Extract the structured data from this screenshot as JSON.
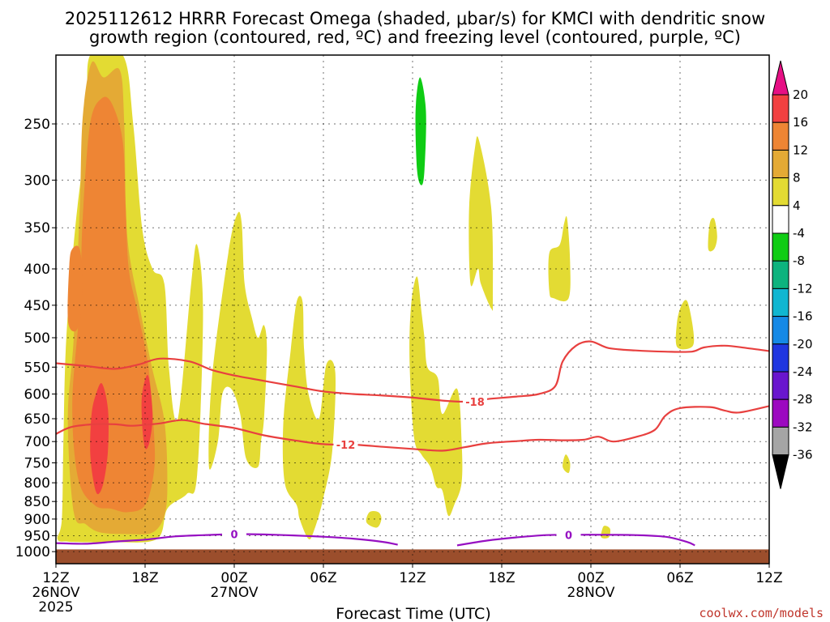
{
  "chart_data": {
    "type": "heatmap",
    "title_line1": "2025112612 HRRR Forecast Omega (shaded, μbar/s) for KMCI with dendritic snow",
    "title_line2": "growth region (contoured, red, ºC) and freezing level (contoured, purple, ºC)",
    "xlabel": "Forecast Time (UTC)",
    "credit": "coolwx.com/models",
    "x_ticks": [
      {
        "hour": 0,
        "label": "12Z",
        "sub1": "26NOV",
        "sub2": "2025"
      },
      {
        "hour": 6,
        "label": "18Z",
        "sub1": "",
        "sub2": ""
      },
      {
        "hour": 12,
        "label": "00Z",
        "sub1": "27NOV",
        "sub2": ""
      },
      {
        "hour": 18,
        "label": "06Z",
        "sub1": "",
        "sub2": ""
      },
      {
        "hour": 24,
        "label": "12Z",
        "sub1": "",
        "sub2": ""
      },
      {
        "hour": 30,
        "label": "18Z",
        "sub1": "",
        "sub2": ""
      },
      {
        "hour": 36,
        "label": "00Z",
        "sub1": "28NOV",
        "sub2": ""
      },
      {
        "hour": 42,
        "label": "06Z",
        "sub1": "",
        "sub2": ""
      },
      {
        "hour": 48,
        "label": "12Z",
        "sub1": "",
        "sub2": ""
      }
    ],
    "x_range": [
      0,
      48
    ],
    "y_ticks": [
      250,
      300,
      350,
      400,
      450,
      500,
      550,
      600,
      650,
      700,
      750,
      800,
      850,
      900,
      950,
      1000
    ],
    "y_range_hPa": [
      200,
      1040
    ],
    "surface_hPa": 993,
    "colorbar": {
      "levels": [
        "20",
        "16",
        "12",
        "8",
        "4",
        "-4",
        "-8",
        "-12",
        "-16",
        "-20",
        "-24",
        "-28",
        "-32",
        "-36"
      ],
      "colors": [
        "#e60f84",
        "#f24040",
        "#ee8534",
        "#e4aa35",
        "#e3db33",
        "#ffffff",
        "#0fcc14",
        "#0db37e",
        "#10b6d1",
        "#1589e6",
        "#1f36e0",
        "#6916ce",
        "#9c09c0",
        "#a5a5a5",
        "#000000"
      ]
    },
    "shaded_regions": [
      {
        "level": 4,
        "color": "#e3db33",
        "points": [
          [
            0.1,
            960
          ],
          [
            0.4,
            900
          ],
          [
            0.5,
            700
          ],
          [
            0.7,
            500
          ],
          [
            1.3,
            350
          ],
          [
            2.1,
            250
          ],
          [
            2.3,
            200
          ],
          [
            4.5,
            200
          ],
          [
            5.2,
            250
          ],
          [
            5.8,
            350
          ],
          [
            6.5,
            400
          ],
          [
            7.3,
            420
          ],
          [
            7.6,
            550
          ],
          [
            8.2,
            650
          ],
          [
            9.1,
            420
          ],
          [
            9.5,
            370
          ],
          [
            9.9,
            460
          ],
          [
            9.5,
            780
          ],
          [
            8.8,
            830
          ],
          [
            7.5,
            870
          ],
          [
            6.8,
            960
          ],
          [
            4.0,
            970
          ],
          [
            2.0,
            970
          ],
          [
            0.8,
            968
          ]
        ]
      },
      {
        "level": 4,
        "color": "#e3db33",
        "points": [
          [
            10.3,
            760
          ],
          [
            10.5,
            570
          ],
          [
            11.6,
            380
          ],
          [
            12.2,
            335
          ],
          [
            12.5,
            345
          ],
          [
            12.7,
            420
          ],
          [
            13.2,
            470
          ],
          [
            13.6,
            500
          ],
          [
            14.0,
            480
          ],
          [
            14.2,
            520
          ],
          [
            14.0,
            650
          ],
          [
            13.8,
            700
          ],
          [
            13.6,
            760
          ],
          [
            12.8,
            740
          ],
          [
            12.4,
            640
          ],
          [
            11.8,
            590
          ],
          [
            11.2,
            600
          ],
          [
            10.9,
            700
          ]
        ]
      },
      {
        "level": 4,
        "color": "#e3db33",
        "points": [
          [
            15.4,
            800
          ],
          [
            15.3,
            660
          ],
          [
            15.8,
            520
          ],
          [
            16.2,
            445
          ],
          [
            16.6,
            445
          ],
          [
            16.7,
            520
          ],
          [
            17.0,
            600
          ],
          [
            17.7,
            650
          ],
          [
            18.2,
            545
          ],
          [
            18.8,
            560
          ],
          [
            18.6,
            720
          ],
          [
            18.0,
            840
          ],
          [
            17.4,
            930
          ],
          [
            17.0,
            960
          ],
          [
            16.4,
            900
          ],
          [
            16.2,
            860
          ]
        ]
      },
      {
        "level": 4,
        "color": "#e3db33",
        "points": [
          [
            24.1,
            690
          ],
          [
            23.8,
            540
          ],
          [
            23.9,
            450
          ],
          [
            24.3,
            410
          ],
          [
            24.6,
            460
          ],
          [
            24.8,
            500
          ],
          [
            25.0,
            550
          ],
          [
            25.7,
            570
          ],
          [
            26.0,
            640
          ],
          [
            27.0,
            590
          ],
          [
            27.3,
            700
          ],
          [
            27.3,
            800
          ],
          [
            26.8,
            860
          ],
          [
            26.4,
            890
          ],
          [
            26.0,
            820
          ],
          [
            25.6,
            810
          ],
          [
            25.2,
            760
          ],
          [
            24.6,
            730
          ]
        ]
      },
      {
        "level": 4,
        "color": "#e3db33",
        "points": [
          [
            27.9,
            420
          ],
          [
            27.8,
            330
          ],
          [
            28.2,
            270
          ],
          [
            28.5,
            265
          ],
          [
            29.3,
            330
          ],
          [
            29.4,
            440
          ],
          [
            29.3,
            455
          ],
          [
            28.6,
            420
          ],
          [
            28.4,
            400
          ]
        ]
      },
      {
        "level": 4,
        "color": "#e3db33",
        "points": [
          [
            33.2,
            430
          ],
          [
            33.2,
            380
          ],
          [
            33.9,
            370
          ],
          [
            34.2,
            345
          ],
          [
            34.4,
            340
          ],
          [
            34.6,
            390
          ],
          [
            34.5,
            440
          ],
          [
            33.5,
            440
          ]
        ]
      },
      {
        "level": 4,
        "color": "#e3db33",
        "points": [
          [
            41.8,
            515
          ],
          [
            41.8,
            475
          ],
          [
            42.1,
            450
          ],
          [
            42.5,
            445
          ],
          [
            42.9,
            490
          ],
          [
            42.8,
            515
          ]
        ]
      },
      {
        "level": 4,
        "color": "#e3db33",
        "points": [
          [
            43.9,
            375
          ],
          [
            44.0,
            345
          ],
          [
            44.3,
            340
          ],
          [
            44.5,
            360
          ],
          [
            44.3,
            375
          ]
        ]
      },
      {
        "level": 4,
        "color": "#e3db33",
        "points": [
          [
            34.1,
            760
          ],
          [
            34.3,
            730
          ],
          [
            34.6,
            750
          ],
          [
            34.5,
            775
          ]
        ]
      },
      {
        "level": 4,
        "color": "#e3db33",
        "points": [
          [
            36.7,
            955
          ],
          [
            36.8,
            925
          ],
          [
            37.0,
            920
          ],
          [
            37.3,
            930
          ],
          [
            37.2,
            955
          ]
        ]
      },
      {
        "level": 4,
        "color": "#e3db33",
        "points": [
          [
            20.9,
            910
          ],
          [
            21.1,
            880
          ],
          [
            21.7,
            880
          ],
          [
            21.9,
            900
          ],
          [
            21.6,
            925
          ]
        ]
      },
      {
        "level": 8,
        "color": "#e4aa35",
        "points": [
          [
            1.2,
            880
          ],
          [
            0.8,
            650
          ],
          [
            1.2,
            500
          ],
          [
            1.6,
            330
          ],
          [
            1.8,
            245
          ],
          [
            2.4,
            205
          ],
          [
            3.2,
            215
          ],
          [
            4.3,
            210
          ],
          [
            4.6,
            250
          ],
          [
            4.8,
            360
          ],
          [
            5.7,
            460
          ],
          [
            6.5,
            555
          ],
          [
            7.3,
            655
          ],
          [
            7.5,
            800
          ],
          [
            7.3,
            890
          ],
          [
            6.5,
            940
          ],
          [
            5.0,
            945
          ],
          [
            3.0,
            940
          ],
          [
            2.0,
            915
          ]
        ]
      },
      {
        "level": 12,
        "color": "#ee8534",
        "points": [
          [
            1.5,
            790
          ],
          [
            1.1,
            620
          ],
          [
            1.6,
            450
          ],
          [
            1.8,
            340
          ],
          [
            2.3,
            250
          ],
          [
            3.1,
            230
          ],
          [
            3.8,
            235
          ],
          [
            4.5,
            265
          ],
          [
            4.7,
            330
          ],
          [
            4.9,
            400
          ],
          [
            5.5,
            460
          ],
          [
            6.2,
            545
          ],
          [
            6.6,
            680
          ],
          [
            6.6,
            770
          ],
          [
            6.0,
            860
          ],
          [
            4.8,
            880
          ],
          [
            3.7,
            870
          ],
          [
            2.6,
            860
          ]
        ]
      },
      {
        "level": 12,
        "color": "#ee8534",
        "points": [
          [
            0.8,
            470
          ],
          [
            0.9,
            395
          ],
          [
            1.1,
            375
          ],
          [
            1.6,
            375
          ],
          [
            1.8,
            420
          ],
          [
            1.6,
            475
          ],
          [
            1.2,
            490
          ]
        ]
      },
      {
        "level": 16,
        "color": "#f24040",
        "points": [
          [
            2.3,
            720
          ],
          [
            2.4,
            640
          ],
          [
            2.7,
            600
          ],
          [
            3.1,
            580
          ],
          [
            3.5,
            630
          ],
          [
            3.5,
            720
          ],
          [
            3.2,
            800
          ],
          [
            2.8,
            830
          ],
          [
            2.5,
            790
          ]
        ]
      },
      {
        "level": 16,
        "color": "#f24040",
        "points": [
          [
            5.8,
            660
          ],
          [
            5.8,
            600
          ],
          [
            6.2,
            565
          ],
          [
            6.5,
            640
          ],
          [
            6.3,
            700
          ],
          [
            6.0,
            715
          ]
        ]
      },
      {
        "level": -8,
        "color": "#0fcc14",
        "points": [
          [
            24.3,
            290
          ],
          [
            24.2,
            240
          ],
          [
            24.5,
            215
          ],
          [
            24.9,
            240
          ],
          [
            24.8,
            290
          ],
          [
            24.6,
            305
          ]
        ]
      }
    ],
    "contours": [
      {
        "value": "-18",
        "color": "#e8403f",
        "label_hour": 28.2,
        "points": [
          [
            0,
            543
          ],
          [
            2,
            548
          ],
          [
            4,
            553
          ],
          [
            5.6,
            545
          ],
          [
            7,
            535
          ],
          [
            9,
            540
          ],
          [
            10.5,
            555
          ],
          [
            12,
            565
          ],
          [
            14,
            575
          ],
          [
            16,
            585
          ],
          [
            18,
            595
          ],
          [
            20,
            600
          ],
          [
            22,
            603
          ],
          [
            24,
            607
          ],
          [
            26,
            613
          ],
          [
            27.5,
            615
          ],
          [
            29,
            610
          ],
          [
            31,
            605
          ],
          [
            32.5,
            600
          ],
          [
            33.6,
            585
          ],
          [
            34.1,
            540
          ],
          [
            35,
            513
          ],
          [
            36,
            506
          ],
          [
            37.2,
            517
          ],
          [
            39,
            521
          ],
          [
            41,
            523
          ],
          [
            42.8,
            523
          ],
          [
            43.6,
            516
          ],
          [
            45,
            513
          ],
          [
            46.5,
            517
          ],
          [
            48,
            522
          ]
        ]
      },
      {
        "value": "-12",
        "color": "#e8403f",
        "label_hour": 19.5,
        "points": [
          [
            0,
            683
          ],
          [
            1,
            668
          ],
          [
            2.5,
            662
          ],
          [
            4,
            662
          ],
          [
            5,
            665
          ],
          [
            6,
            663
          ],
          [
            7,
            660
          ],
          [
            8.5,
            653
          ],
          [
            10,
            661
          ],
          [
            12,
            670
          ],
          [
            14,
            686
          ],
          [
            16,
            697
          ],
          [
            18,
            706
          ],
          [
            20,
            707
          ],
          [
            22,
            712
          ],
          [
            24,
            717
          ],
          [
            26,
            721
          ],
          [
            27.5,
            713
          ],
          [
            29,
            704
          ],
          [
            31,
            699
          ],
          [
            32.5,
            696
          ],
          [
            34,
            697
          ],
          [
            35.5,
            696
          ],
          [
            36.5,
            689
          ],
          [
            37.5,
            700
          ],
          [
            39,
            690
          ],
          [
            40.3,
            674
          ],
          [
            41,
            644
          ],
          [
            42,
            628
          ],
          [
            44,
            626
          ],
          [
            45,
            633
          ],
          [
            46,
            637
          ],
          [
            48,
            624
          ]
        ]
      },
      {
        "value": "0",
        "color": "#9610c2",
        "label_hour": 12,
        "points": [
          [
            0,
            973
          ],
          [
            2,
            975
          ],
          [
            4,
            968
          ],
          [
            6,
            962
          ],
          [
            8,
            952
          ],
          [
            10,
            948
          ],
          [
            12,
            945
          ],
          [
            14,
            946
          ],
          [
            16,
            949
          ],
          [
            18,
            953
          ],
          [
            20,
            959
          ],
          [
            22,
            969
          ],
          [
            23,
            978
          ]
        ]
      },
      {
        "value": "0",
        "color": "#9610c2",
        "label_hour": 34.5,
        "points": [
          [
            27,
            980
          ],
          [
            29,
            965
          ],
          [
            31,
            955
          ],
          [
            33,
            948
          ],
          [
            35,
            947
          ],
          [
            37,
            947
          ],
          [
            39,
            948
          ],
          [
            41,
            953
          ],
          [
            42.4,
            968
          ],
          [
            43,
            980
          ]
        ]
      }
    ]
  }
}
